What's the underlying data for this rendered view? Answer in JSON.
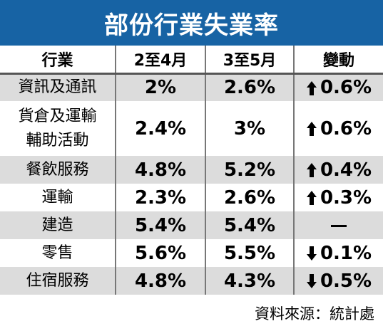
{
  "title": "部份行業失業率",
  "chart_data": {
    "type": "table",
    "columns": [
      "行業",
      "2至4月",
      "3至5月",
      "變動"
    ],
    "rows": [
      {
        "industry": "資訊及通訊",
        "feb_apr": "2%",
        "mar_may": "2.6%",
        "direction": "up",
        "change": "0.6%"
      },
      {
        "industry": "貨倉及運輸\n輔助活動",
        "feb_apr": "2.4%",
        "mar_may": "3%",
        "direction": "up",
        "change": "0.6%"
      },
      {
        "industry": "餐飲服務",
        "feb_apr": "4.8%",
        "mar_may": "5.2%",
        "direction": "up",
        "change": "0.4%"
      },
      {
        "industry": "運輸",
        "feb_apr": "2.3%",
        "mar_may": "2.6%",
        "direction": "up",
        "change": "0.3%"
      },
      {
        "industry": "建造",
        "feb_apr": "5.4%",
        "mar_may": "5.4%",
        "direction": "none",
        "change": ""
      },
      {
        "industry": "零售",
        "feb_apr": "5.6%",
        "mar_may": "5.5%",
        "direction": "down",
        "change": "0.1%"
      },
      {
        "industry": "住宿服務",
        "feb_apr": "4.8%",
        "mar_may": "4.3%",
        "direction": "down",
        "change": "0.5%"
      }
    ]
  },
  "source": "資料來源：統計處",
  "colors": {
    "title_bg": "#1763a4",
    "stripe": "#dcdcdc"
  }
}
